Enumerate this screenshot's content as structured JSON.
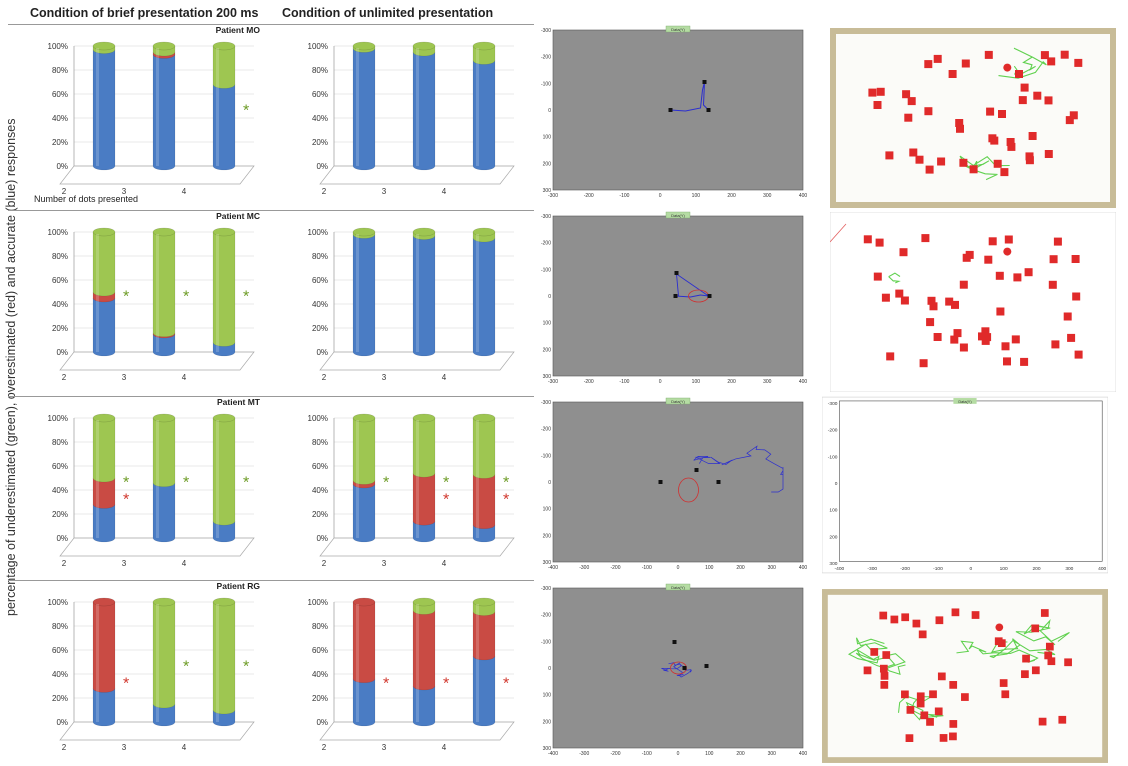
{
  "headers": {
    "brief": "Condition of brief presentation 200 ms",
    "unlimited": "Condition of unlimited presentation"
  },
  "y_axis_label": "percentage of underestimated (green), overestimated (red) and accurate (blue) responses",
  "x_axis_note": "Number of dots presented",
  "colors": {
    "accurate": "#4a7cc4",
    "overestimated": "#c94b44",
    "underestimated": "#9ec651",
    "star_green": "#6b9a23",
    "star_red": "#d0352b",
    "plot_bg": "#8f8f8f"
  },
  "chart_data": [
    {
      "type": "bar",
      "stacked": true,
      "patient": "Patient MO",
      "condition": "brief",
      "categories": [
        "2",
        "3",
        "4"
      ],
      "ylim": [
        0,
        100
      ],
      "yticks": [
        "0%",
        "20%",
        "40%",
        "60%",
        "80%",
        "100%"
      ],
      "series": [
        {
          "name": "accurate",
          "values": [
            97,
            93,
            68
          ]
        },
        {
          "name": "overestimated",
          "values": [
            0,
            2,
            0
          ]
        },
        {
          "name": "underestimated",
          "values": [
            3,
            5,
            32
          ]
        }
      ],
      "stars": [
        {
          "category": "4",
          "color": "green"
        }
      ]
    },
    {
      "type": "bar",
      "stacked": true,
      "patient": "",
      "condition": "unlimited",
      "categories": [
        "2",
        "3",
        "4"
      ],
      "ylim": [
        0,
        100
      ],
      "yticks": [
        "0%",
        "20%",
        "40%",
        "60%",
        "80%",
        "100%"
      ],
      "series": [
        {
          "name": "accurate",
          "values": [
            98,
            95,
            88
          ]
        },
        {
          "name": "overestimated",
          "values": [
            0,
            0,
            0
          ]
        },
        {
          "name": "underestimated",
          "values": [
            2,
            5,
            12
          ]
        }
      ],
      "stars": []
    },
    {
      "type": "bar",
      "stacked": true,
      "patient": "Patient MC",
      "condition": "brief",
      "categories": [
        "2",
        "3",
        "4"
      ],
      "ylim": [
        0,
        100
      ],
      "yticks": [
        "0%",
        "20%",
        "40%",
        "60%",
        "80%",
        "100%"
      ],
      "series": [
        {
          "name": "accurate",
          "values": [
            45,
            15,
            8
          ]
        },
        {
          "name": "overestimated",
          "values": [
            5,
            1,
            0
          ]
        },
        {
          "name": "underestimated",
          "values": [
            50,
            84,
            92
          ]
        }
      ],
      "stars": [
        {
          "category": "2",
          "color": "green"
        },
        {
          "category": "3",
          "color": "green"
        },
        {
          "category": "4",
          "color": "green"
        }
      ]
    },
    {
      "type": "bar",
      "stacked": true,
      "patient": "",
      "condition": "unlimited",
      "categories": [
        "2",
        "3",
        "4"
      ],
      "ylim": [
        0,
        100
      ],
      "yticks": [
        "0%",
        "20%",
        "40%",
        "60%",
        "80%",
        "100%"
      ],
      "series": [
        {
          "name": "accurate",
          "values": [
            98,
            97,
            95
          ]
        },
        {
          "name": "overestimated",
          "values": [
            0,
            0,
            0
          ]
        },
        {
          "name": "underestimated",
          "values": [
            2,
            3,
            5
          ]
        }
      ],
      "stars": []
    },
    {
      "type": "bar",
      "stacked": true,
      "patient": "Patient MT",
      "condition": "brief",
      "categories": [
        "2",
        "3",
        "4"
      ],
      "ylim": [
        0,
        100
      ],
      "yticks": [
        "0%",
        "20%",
        "40%",
        "60%",
        "80%",
        "100%"
      ],
      "series": [
        {
          "name": "accurate",
          "values": [
            28,
            46,
            14
          ]
        },
        {
          "name": "overestimated",
          "values": [
            22,
            0,
            0
          ]
        },
        {
          "name": "underestimated",
          "values": [
            50,
            54,
            86
          ]
        }
      ],
      "stars": [
        {
          "category": "2",
          "color": "green"
        },
        {
          "category": "2",
          "color": "red"
        },
        {
          "category": "3",
          "color": "green"
        },
        {
          "category": "4",
          "color": "green"
        }
      ]
    },
    {
      "type": "bar",
      "stacked": true,
      "patient": "",
      "condition": "unlimited",
      "categories": [
        "2",
        "3",
        "4"
      ],
      "ylim": [
        0,
        100
      ],
      "yticks": [
        "0%",
        "20%",
        "40%",
        "60%",
        "80%",
        "100%"
      ],
      "series": [
        {
          "name": "accurate",
          "values": [
            45,
            14,
            11
          ]
        },
        {
          "name": "overestimated",
          "values": [
            3,
            40,
            42
          ]
        },
        {
          "name": "underestimated",
          "values": [
            52,
            46,
            47
          ]
        }
      ],
      "stars": [
        {
          "category": "2",
          "color": "green"
        },
        {
          "category": "3",
          "color": "green"
        },
        {
          "category": "3",
          "color": "red"
        },
        {
          "category": "4",
          "color": "green"
        },
        {
          "category": "4",
          "color": "red"
        }
      ]
    },
    {
      "type": "bar",
      "stacked": true,
      "patient": "Patient RG",
      "condition": "brief",
      "categories": [
        "2",
        "3",
        "4"
      ],
      "ylim": [
        0,
        100
      ],
      "yticks": [
        "0%",
        "20%",
        "40%",
        "60%",
        "80%",
        "100%"
      ],
      "series": [
        {
          "name": "accurate",
          "values": [
            28,
            15,
            10
          ]
        },
        {
          "name": "overestimated",
          "values": [
            72,
            0,
            0
          ]
        },
        {
          "name": "underestimated",
          "values": [
            0,
            85,
            90
          ]
        }
      ],
      "stars": [
        {
          "category": "2",
          "color": "red"
        },
        {
          "category": "3",
          "color": "green"
        },
        {
          "category": "4",
          "color": "green"
        }
      ]
    },
    {
      "type": "bar",
      "stacked": true,
      "patient": "",
      "condition": "unlimited",
      "categories": [
        "2",
        "3",
        "4"
      ],
      "ylim": [
        0,
        100
      ],
      "yticks": [
        "0%",
        "20%",
        "40%",
        "60%",
        "80%",
        "100%"
      ],
      "series": [
        {
          "name": "accurate",
          "values": [
            36,
            30,
            55
          ]
        },
        {
          "name": "overestimated",
          "values": [
            64,
            63,
            37
          ]
        },
        {
          "name": "underestimated",
          "values": [
            0,
            7,
            8
          ]
        }
      ],
      "stars": [
        {
          "category": "2",
          "color": "red"
        },
        {
          "category": "3",
          "color": "red"
        },
        {
          "category": "4",
          "color": "red"
        }
      ]
    }
  ],
  "gaze_plots": [
    {
      "legend": "Data(Y)",
      "xticks": [
        "-300",
        "-200",
        "-100",
        "0",
        "100",
        "200",
        "300",
        "400"
      ],
      "yticks": [
        "-300",
        "-200",
        "-100",
        "0",
        "100",
        "200",
        "300"
      ]
    },
    {
      "legend": "Data(Y)",
      "xticks": [
        "-300",
        "-200",
        "-100",
        "0",
        "100",
        "200",
        "300",
        "400"
      ],
      "yticks": [
        "-300",
        "-200",
        "-100",
        "0",
        "100",
        "200",
        "300"
      ]
    },
    {
      "legend": "Data(Y)",
      "xticks": [
        "-400",
        "-300",
        "-200",
        "-100",
        "0",
        "100",
        "200",
        "300",
        "400"
      ],
      "yticks": [
        "-300",
        "-200",
        "-100",
        "0",
        "100",
        "200",
        "300"
      ]
    },
    {
      "legend": "Data(Y)",
      "xticks": [
        "-400",
        "-300",
        "-200",
        "-100",
        "0",
        "100",
        "200",
        "300",
        "400"
      ],
      "yticks": [
        "-300",
        "-200",
        "-100",
        "0",
        "100",
        "200",
        "300"
      ]
    }
  ],
  "scanpath_photos": [
    {
      "frame": "tan",
      "trace": "green",
      "dots": 44
    },
    {
      "frame": "white",
      "trace": "green",
      "dots": 46
    },
    {
      "frame": "white",
      "trace": "black",
      "dots": 42,
      "legend": "Data(Y)",
      "xticks": [
        "-400",
        "-300",
        "-200",
        "-100",
        "0",
        "100",
        "200",
        "300",
        "400"
      ],
      "yticks": [
        "-300",
        "-200",
        "-100",
        "0",
        "100",
        "200",
        "300"
      ]
    },
    {
      "frame": "tan",
      "trace": "green",
      "dots": 44
    }
  ]
}
